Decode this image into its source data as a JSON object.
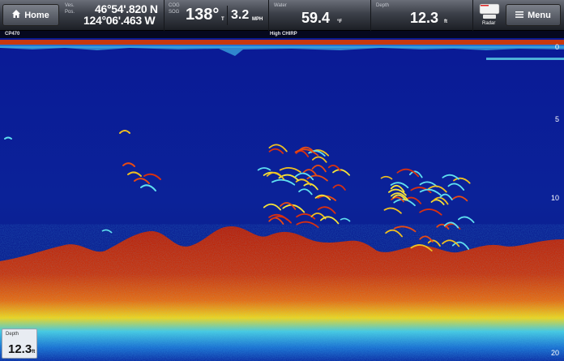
{
  "topbar": {
    "home_label": "Home",
    "menu_label": "Menu",
    "position": {
      "label_top": "Ves.",
      "label_bottom": "Pos.",
      "lat": "46°54'.820 N",
      "lon": "124°06'.463 W"
    },
    "cog_sog": {
      "label_cog": "COG",
      "label_sog": "SOG",
      "heading": "138°",
      "heading_suffix": "T",
      "speed": "3.2",
      "speed_unit": "MPH"
    },
    "water": {
      "label": "Water",
      "value": "59.4",
      "unit": "°F"
    },
    "depth": {
      "label": "Depth",
      "value": "12.3",
      "unit": "ft"
    },
    "radar_widget": {
      "label": "Radar"
    }
  },
  "subbar": {
    "left_label": "CP470",
    "center_label": "High CHIRP"
  },
  "scale": {
    "labels": [
      "0",
      "5",
      "10",
      "20"
    ]
  },
  "depth_box": {
    "label": "Depth",
    "value": "12.3",
    "unit": "ft"
  },
  "colors": {
    "water": "#0a1e8c",
    "bottom": "#c8280a",
    "accent": "#ffffff"
  }
}
